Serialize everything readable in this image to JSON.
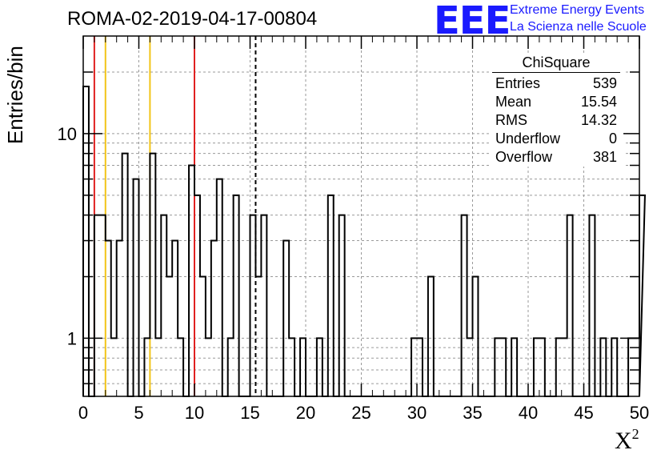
{
  "title": "ROMA-02-2019-04-17-00804",
  "ylabel": "Entries/bin",
  "xlabel_main": "X",
  "xlabel_sup": "2",
  "logo": {
    "mark": "EEE",
    "line1": "Extreme Energy Events",
    "line2": "La Scienza nelle Scuole",
    "color": "#1a1aff"
  },
  "stats": {
    "name": "ChiSquare",
    "rows": [
      {
        "label": "Entries",
        "value": "539"
      },
      {
        "label": "Mean",
        "value": "15.54"
      },
      {
        "label": "RMS",
        "value": "14.32"
      },
      {
        "label": "Underflow",
        "value": "0"
      },
      {
        "label": "Overflow",
        "value": "381"
      }
    ]
  },
  "chart_data": {
    "type": "bar",
    "style": "step-histogram",
    "xlim": [
      0,
      50
    ],
    "ylim": [
      0.52,
      30
    ],
    "yscale": "log",
    "grid": true,
    "bin_width": 0.5,
    "x_ticks": [
      0,
      5,
      10,
      15,
      20,
      25,
      30,
      35,
      40,
      45,
      50
    ],
    "x_tick_labels": [
      "0",
      "5",
      "10",
      "15",
      "20",
      "25",
      "30",
      "35",
      "40",
      "45",
      "50"
    ],
    "y_ticks": [
      1,
      10
    ],
    "y_tick_labels": [
      "1",
      "10"
    ],
    "bin_counts": [
      17,
      0,
      4,
      4,
      3,
      1,
      3,
      8,
      0,
      6,
      0,
      1,
      8,
      1,
      4,
      2,
      3,
      1,
      0,
      7,
      5,
      2,
      1,
      3,
      6,
      0,
      1,
      5,
      0,
      0,
      4,
      2,
      4,
      0,
      0,
      0,
      3,
      1,
      0,
      1,
      0,
      0,
      1,
      0,
      5,
      0,
      4,
      0,
      0,
      0,
      0,
      0,
      0,
      0,
      0,
      0,
      0,
      0,
      0,
      1,
      1,
      0,
      2,
      0,
      0,
      0,
      0,
      0,
      4,
      1,
      2,
      0,
      0,
      0,
      1,
      1,
      0,
      1,
      0,
      0,
      0,
      1,
      1,
      0,
      0,
      1,
      1,
      4,
      0,
      0,
      0,
      4,
      0,
      1,
      0,
      1,
      0,
      0,
      1,
      1,
      5
    ],
    "vertical_lines": [
      {
        "x": 1.0,
        "color": "#e02020",
        "style": "solid"
      },
      {
        "x": 2.0,
        "color": "#f2c418",
        "style": "solid"
      },
      {
        "x": 6.0,
        "color": "#f2c418",
        "style": "solid"
      },
      {
        "x": 10.0,
        "color": "#e02020",
        "style": "solid"
      },
      {
        "x": 15.5,
        "color": "#000000",
        "style": "dashed"
      }
    ]
  }
}
